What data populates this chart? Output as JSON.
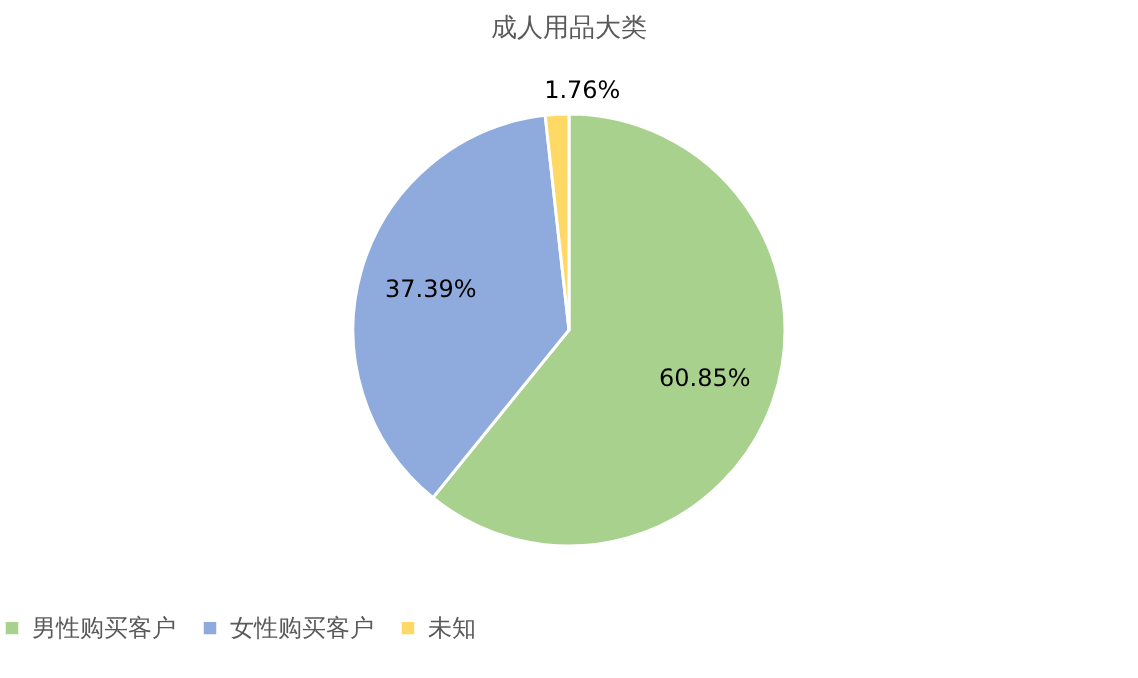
{
  "chart_data": {
    "type": "pie",
    "title": "成人用品大类",
    "categories": [
      "男性购买客户",
      "女性购买客户",
      "未知"
    ],
    "values": [
      60.85,
      37.39,
      1.76
    ],
    "colors": [
      "#a9d18e",
      "#8faadc",
      "#ffd966"
    ],
    "value_labels": [
      "60.85%",
      "37.39%",
      "1.76%"
    ],
    "legend": "bottom"
  }
}
